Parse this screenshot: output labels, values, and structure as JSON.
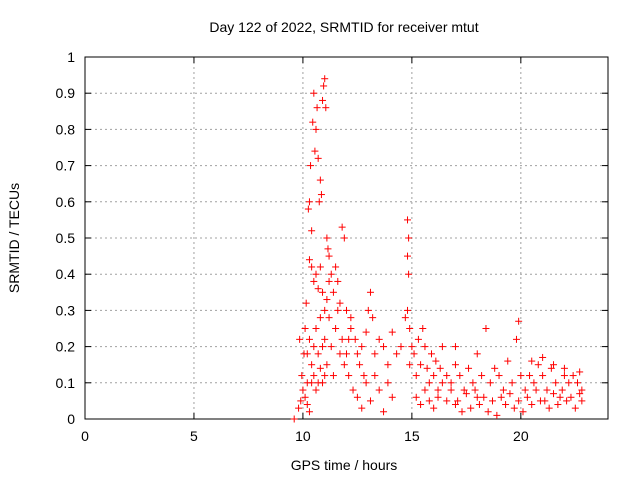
{
  "chart_data": {
    "type": "scatter",
    "title": "Day 122 of 2022, SRMTID for receiver mtut",
    "xlabel": "GPS time / hours",
    "ylabel": "SRMTID / TECUs",
    "xlim": [
      0,
      24
    ],
    "ylim": [
      0,
      1
    ],
    "xticks": [
      0,
      5,
      10,
      15,
      20
    ],
    "xtick_labels": [
      "0",
      "5",
      "10",
      "15",
      "20"
    ],
    "yticks": [
      0,
      0.1,
      0.2,
      0.3,
      0.4,
      0.5,
      0.6,
      0.7,
      0.8,
      0.9,
      1
    ],
    "ytick_labels": [
      "0",
      "0.1",
      "0.2",
      "0.3",
      "0.4",
      "0.5",
      "0.6",
      "0.7",
      "0.8",
      "0.9",
      "1"
    ],
    "grid": true,
    "marker": "+",
    "series": [
      {
        "name": "SRMTID",
        "color": "#ff0000",
        "points": [
          [
            9.6,
            0.0
          ],
          [
            9.8,
            0.03
          ],
          [
            9.85,
            0.22
          ],
          [
            9.9,
            0.05
          ],
          [
            9.95,
            0.12
          ],
          [
            10.0,
            0.08
          ],
          [
            10.05,
            0.18
          ],
          [
            10.1,
            0.25
          ],
          [
            10.15,
            0.32
          ],
          [
            10.2,
            0.1
          ],
          [
            10.25,
            0.58
          ],
          [
            10.3,
            0.6
          ],
          [
            10.35,
            0.7
          ],
          [
            10.4,
            0.52
          ],
          [
            10.45,
            0.82
          ],
          [
            10.5,
            0.9
          ],
          [
            10.55,
            0.74
          ],
          [
            10.6,
            0.8
          ],
          [
            10.65,
            0.86
          ],
          [
            10.7,
            0.72
          ],
          [
            10.75,
            0.6
          ],
          [
            10.8,
            0.66
          ],
          [
            10.85,
            0.62
          ],
          [
            10.9,
            0.88
          ],
          [
            10.95,
            0.92
          ],
          [
            11.0,
            0.94
          ],
          [
            11.05,
            0.86
          ],
          [
            11.1,
            0.5
          ],
          [
            11.15,
            0.47
          ],
          [
            11.2,
            0.45
          ],
          [
            10.3,
            0.44
          ],
          [
            10.4,
            0.42
          ],
          [
            10.5,
            0.38
          ],
          [
            10.6,
            0.4
          ],
          [
            10.7,
            0.36
          ],
          [
            10.8,
            0.42
          ],
          [
            10.9,
            0.35
          ],
          [
            11.0,
            0.3
          ],
          [
            11.1,
            0.33
          ],
          [
            11.2,
            0.38
          ],
          [
            11.3,
            0.4
          ],
          [
            11.4,
            0.35
          ],
          [
            11.5,
            0.42
          ],
          [
            11.6,
            0.38
          ],
          [
            11.7,
            0.32
          ],
          [
            11.8,
            0.53
          ],
          [
            11.9,
            0.5
          ],
          [
            12.0,
            0.3
          ],
          [
            12.1,
            0.22
          ],
          [
            12.2,
            0.25
          ],
          [
            10.2,
            0.18
          ],
          [
            10.3,
            0.22
          ],
          [
            10.4,
            0.15
          ],
          [
            10.5,
            0.2
          ],
          [
            10.6,
            0.25
          ],
          [
            10.7,
            0.18
          ],
          [
            10.8,
            0.28
          ],
          [
            10.9,
            0.2
          ],
          [
            11.0,
            0.22
          ],
          [
            11.1,
            0.15
          ],
          [
            11.2,
            0.28
          ],
          [
            11.3,
            0.2
          ],
          [
            11.4,
            0.12
          ],
          [
            11.5,
            0.25
          ],
          [
            11.6,
            0.3
          ],
          [
            11.7,
            0.18
          ],
          [
            11.8,
            0.22
          ],
          [
            11.9,
            0.15
          ],
          [
            12.0,
            0.18
          ],
          [
            12.1,
            0.12
          ],
          [
            10.1,
            0.06
          ],
          [
            10.2,
            0.04
          ],
          [
            10.3,
            0.02
          ],
          [
            10.4,
            0.1
          ],
          [
            10.5,
            0.12
          ],
          [
            10.6,
            0.08
          ],
          [
            10.7,
            0.1
          ],
          [
            10.8,
            0.14
          ],
          [
            10.9,
            0.1
          ],
          [
            11.0,
            0.12
          ],
          [
            12.2,
            0.28
          ],
          [
            12.4,
            0.22
          ],
          [
            12.5,
            0.18
          ],
          [
            12.6,
            0.15
          ],
          [
            12.7,
            0.2
          ],
          [
            12.8,
            0.12
          ],
          [
            12.9,
            0.24
          ],
          [
            13.0,
            0.3
          ],
          [
            13.1,
            0.35
          ],
          [
            13.2,
            0.28
          ],
          [
            12.3,
            0.08
          ],
          [
            12.5,
            0.06
          ],
          [
            12.7,
            0.03
          ],
          [
            12.9,
            0.1
          ],
          [
            13.1,
            0.05
          ],
          [
            13.3,
            0.12
          ],
          [
            13.5,
            0.08
          ],
          [
            13.7,
            0.02
          ],
          [
            13.9,
            0.1
          ],
          [
            14.1,
            0.06
          ],
          [
            13.3,
            0.18
          ],
          [
            13.5,
            0.22
          ],
          [
            13.7,
            0.2
          ],
          [
            13.9,
            0.15
          ],
          [
            14.1,
            0.24
          ],
          [
            14.3,
            0.18
          ],
          [
            14.5,
            0.2
          ],
          [
            14.7,
            0.28
          ],
          [
            14.8,
            0.3
          ],
          [
            14.9,
            0.25
          ],
          [
            14.8,
            0.55
          ],
          [
            14.85,
            0.5
          ],
          [
            14.8,
            0.45
          ],
          [
            14.85,
            0.4
          ],
          [
            14.9,
            0.15
          ],
          [
            15.0,
            0.2
          ],
          [
            15.1,
            0.18
          ],
          [
            15.2,
            0.12
          ],
          [
            15.3,
            0.22
          ],
          [
            15.4,
            0.15
          ],
          [
            15.5,
            0.25
          ],
          [
            15.6,
            0.2
          ],
          [
            15.7,
            0.14
          ],
          [
            15.8,
            0.1
          ],
          [
            15.9,
            0.18
          ],
          [
            16.0,
            0.12
          ],
          [
            16.1,
            0.16
          ],
          [
            16.2,
            0.08
          ],
          [
            16.3,
            0.14
          ],
          [
            16.4,
            0.2
          ],
          [
            15.2,
            0.06
          ],
          [
            15.4,
            0.04
          ],
          [
            15.6,
            0.08
          ],
          [
            15.8,
            0.05
          ],
          [
            16.0,
            0.03
          ],
          [
            16.2,
            0.06
          ],
          [
            16.4,
            0.1
          ],
          [
            16.6,
            0.05
          ],
          [
            16.8,
            0.08
          ],
          [
            17.0,
            0.04
          ],
          [
            16.6,
            0.12
          ],
          [
            16.8,
            0.1
          ],
          [
            17.0,
            0.15
          ],
          [
            17.2,
            0.12
          ],
          [
            17.4,
            0.08
          ],
          [
            17.6,
            0.14
          ],
          [
            17.8,
            0.1
          ],
          [
            18.0,
            0.06
          ],
          [
            18.2,
            0.12
          ],
          [
            18.4,
            0.25
          ],
          [
            17.1,
            0.05
          ],
          [
            17.3,
            0.02
          ],
          [
            17.5,
            0.07
          ],
          [
            17.7,
            0.03
          ],
          [
            17.9,
            0.08
          ],
          [
            18.1,
            0.04
          ],
          [
            18.3,
            0.06
          ],
          [
            18.5,
            0.02
          ],
          [
            18.7,
            0.05
          ],
          [
            18.9,
            0.01
          ],
          [
            18.6,
            0.1
          ],
          [
            18.8,
            0.14
          ],
          [
            19.0,
            0.12
          ],
          [
            19.2,
            0.08
          ],
          [
            19.4,
            0.16
          ],
          [
            19.6,
            0.1
          ],
          [
            19.8,
            0.22
          ],
          [
            19.9,
            0.27
          ],
          [
            20.0,
            0.12
          ],
          [
            20.2,
            0.08
          ],
          [
            19.1,
            0.06
          ],
          [
            19.3,
            0.04
          ],
          [
            19.5,
            0.07
          ],
          [
            19.7,
            0.03
          ],
          [
            19.9,
            0.05
          ],
          [
            20.1,
            0.02
          ],
          [
            20.3,
            0.06
          ],
          [
            20.5,
            0.04
          ],
          [
            20.7,
            0.08
          ],
          [
            20.9,
            0.05
          ],
          [
            20.4,
            0.12
          ],
          [
            20.6,
            0.1
          ],
          [
            20.8,
            0.15
          ],
          [
            21.0,
            0.12
          ],
          [
            21.2,
            0.08
          ],
          [
            21.4,
            0.14
          ],
          [
            21.6,
            0.1
          ],
          [
            21.8,
            0.06
          ],
          [
            22.0,
            0.12
          ],
          [
            22.2,
            0.1
          ],
          [
            21.1,
            0.05
          ],
          [
            21.3,
            0.03
          ],
          [
            21.5,
            0.07
          ],
          [
            21.7,
            0.04
          ],
          [
            21.9,
            0.08
          ],
          [
            22.1,
            0.05
          ],
          [
            22.3,
            0.06
          ],
          [
            22.5,
            0.03
          ],
          [
            22.7,
            0.07
          ],
          [
            22.8,
            0.05
          ],
          [
            22.4,
            0.12
          ],
          [
            22.6,
            0.1
          ],
          [
            22.7,
            0.13
          ],
          [
            22.8,
            0.08
          ],
          [
            20.5,
            0.16
          ],
          [
            21.0,
            0.17
          ],
          [
            21.5,
            0.15
          ],
          [
            22.0,
            0.14
          ],
          [
            18.0,
            0.18
          ],
          [
            17.0,
            0.2
          ]
        ]
      }
    ]
  }
}
